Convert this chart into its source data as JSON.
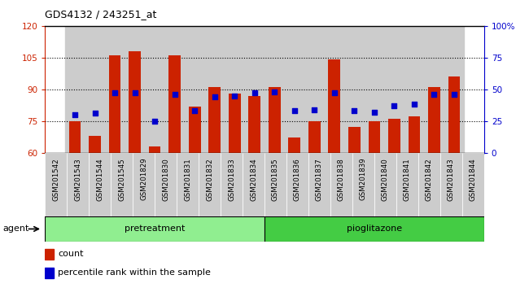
{
  "title": "GDS4132 / 243251_at",
  "categories": [
    "GSM201542",
    "GSM201543",
    "GSM201544",
    "GSM201545",
    "GSM201829",
    "GSM201830",
    "GSM201831",
    "GSM201832",
    "GSM201833",
    "GSM201834",
    "GSM201835",
    "GSM201836",
    "GSM201837",
    "GSM201838",
    "GSM201839",
    "GSM201840",
    "GSM201841",
    "GSM201842",
    "GSM201843",
    "GSM201844"
  ],
  "count_values": [
    75,
    68,
    106,
    108,
    63,
    106,
    82,
    91,
    88,
    87,
    91,
    67,
    75,
    104,
    72,
    75,
    76,
    77,
    91,
    96
  ],
  "percentile_values": [
    30,
    31,
    47,
    47,
    25,
    46,
    33,
    44,
    45,
    47,
    48,
    33,
    34,
    47,
    33,
    32,
    37,
    38,
    46,
    46
  ],
  "pretreatment_count": 10,
  "group_labels": [
    "pretreatment",
    "pioglitazone"
  ],
  "bar_color": "#cc2200",
  "dot_color": "#0000cc",
  "ylim_left": [
    60,
    120
  ],
  "ylim_right": [
    0,
    100
  ],
  "yticks_left": [
    60,
    75,
    90,
    105,
    120
  ],
  "yticks_right": [
    0,
    25,
    50,
    75,
    100
  ],
  "yticklabels_right": [
    "0",
    "25",
    "50",
    "75",
    "100%"
  ],
  "grid_values": [
    75,
    90,
    105
  ],
  "background_color": "#ffffff",
  "cell_color": "#cccccc",
  "agent_label": "agent",
  "green_light": "#90ee90",
  "green_dark": "#44cc44"
}
